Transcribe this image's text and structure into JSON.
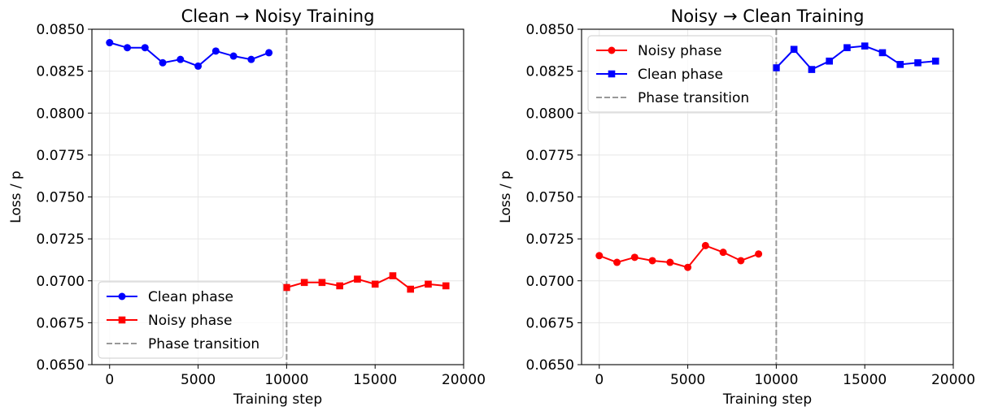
{
  "chart_data": [
    {
      "type": "line",
      "title": "Clean → Noisy Training",
      "xlabel": "Training step",
      "ylabel": "Loss / p",
      "xlim": [
        -1000,
        20000
      ],
      "ylim": [
        0.065,
        0.085
      ],
      "xticks": [
        0,
        5000,
        10000,
        15000,
        20000
      ],
      "yticks": [
        0.065,
        0.0675,
        0.07,
        0.0725,
        0.075,
        0.0775,
        0.08,
        0.0825,
        0.085
      ],
      "xtick_labels": [
        "0",
        "5000",
        "10000",
        "15000",
        "20000"
      ],
      "ytick_labels": [
        "0.0650",
        "0.0675",
        "0.0700",
        "0.0725",
        "0.0750",
        "0.0775",
        "0.0800",
        "0.0825",
        "0.0850"
      ],
      "grid": true,
      "legend_position": "lower-left",
      "series": [
        {
          "name": "Clean phase",
          "color": "#0000ff",
          "marker": "circle",
          "x": [
            0,
            1000,
            2000,
            3000,
            4000,
            5000,
            6000,
            7000,
            8000,
            9000
          ],
          "y": [
            0.0842,
            0.0839,
            0.0839,
            0.083,
            0.0832,
            0.0828,
            0.0837,
            0.0834,
            0.0832,
            0.0836
          ]
        },
        {
          "name": "Noisy phase",
          "color": "#ff0000",
          "marker": "square",
          "x": [
            10000,
            11000,
            12000,
            13000,
            14000,
            15000,
            16000,
            17000,
            18000,
            19000
          ],
          "y": [
            0.0696,
            0.0699,
            0.0699,
            0.0697,
            0.0701,
            0.0698,
            0.0703,
            0.0695,
            0.0698,
            0.0697
          ]
        }
      ],
      "vline": {
        "name": "Phase transition",
        "x": 10000,
        "color": "#999999"
      },
      "legend_order": [
        "Clean phase",
        "Noisy phase",
        "Phase transition"
      ]
    },
    {
      "type": "line",
      "title": "Noisy → Clean Training",
      "xlabel": "Training step",
      "ylabel": "Loss / p",
      "xlim": [
        -1000,
        20000
      ],
      "ylim": [
        0.065,
        0.085
      ],
      "xticks": [
        0,
        5000,
        10000,
        15000,
        20000
      ],
      "yticks": [
        0.065,
        0.0675,
        0.07,
        0.0725,
        0.075,
        0.0775,
        0.08,
        0.0825,
        0.085
      ],
      "xtick_labels": [
        "0",
        "5000",
        "10000",
        "15000",
        "20000"
      ],
      "ytick_labels": [
        "0.0650",
        "0.0675",
        "0.0700",
        "0.0725",
        "0.0750",
        "0.0775",
        "0.0800",
        "0.0825",
        "0.0850"
      ],
      "grid": true,
      "legend_position": "upper-left",
      "series": [
        {
          "name": "Noisy phase",
          "color": "#ff0000",
          "marker": "circle",
          "x": [
            0,
            1000,
            2000,
            3000,
            4000,
            5000,
            6000,
            7000,
            8000,
            9000
          ],
          "y": [
            0.0715,
            0.0711,
            0.0714,
            0.0712,
            0.0711,
            0.0708,
            0.0721,
            0.0717,
            0.0712,
            0.0716
          ]
        },
        {
          "name": "Clean phase",
          "color": "#0000ff",
          "marker": "square",
          "x": [
            10000,
            11000,
            12000,
            13000,
            14000,
            15000,
            16000,
            17000,
            18000,
            19000
          ],
          "y": [
            0.0827,
            0.0838,
            0.0826,
            0.0831,
            0.0839,
            0.084,
            0.0836,
            0.0829,
            0.083,
            0.0831
          ]
        }
      ],
      "vline": {
        "name": "Phase transition",
        "x": 10000,
        "color": "#999999"
      },
      "legend_order": [
        "Noisy phase",
        "Clean phase",
        "Phase transition"
      ]
    }
  ]
}
